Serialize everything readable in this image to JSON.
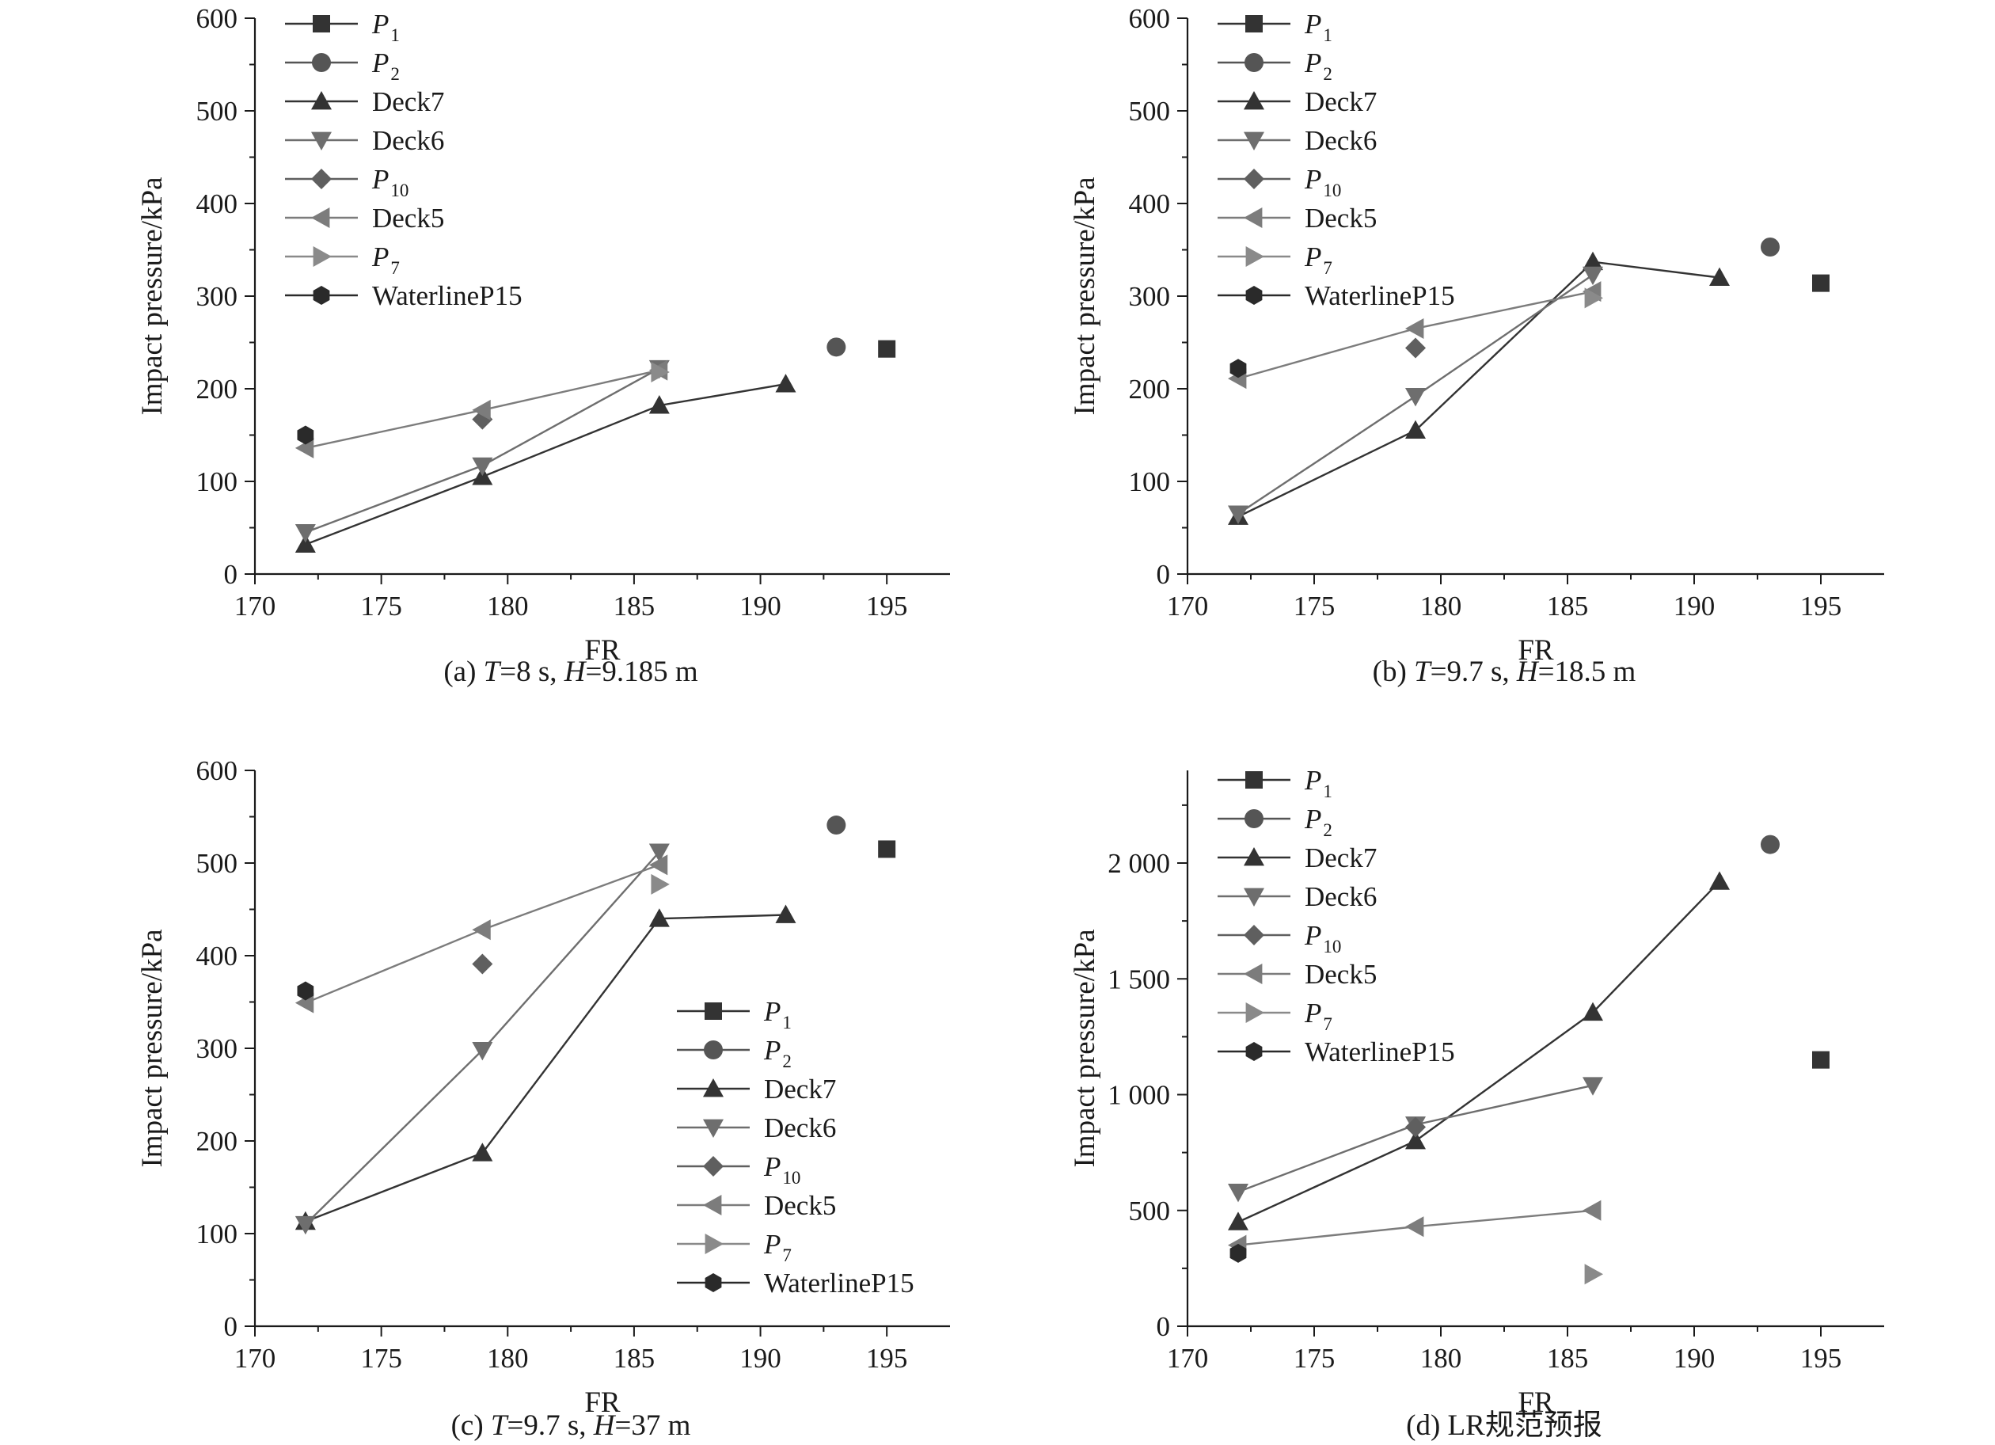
{
  "chart_data": [
    {
      "type": "line",
      "caption": "(a) T=8 s, H=9.185 m",
      "caption_parts": [
        "(a) ",
        "T",
        "=8 s, ",
        "H",
        "=9.185 m"
      ],
      "xlabel": "FR",
      "ylabel": "Impact pressure/kPa",
      "xlim": [
        170,
        197.5
      ],
      "ylim": [
        0,
        600
      ],
      "xticks": [
        170,
        175,
        180,
        185,
        190,
        195
      ],
      "xtick_labels": [
        "170",
        "175",
        "180",
        "185",
        "190",
        "195"
      ],
      "yticks": [
        0,
        100,
        200,
        300,
        400,
        500,
        600
      ],
      "ytick_labels": [
        "0",
        "100",
        "200",
        "300",
        "400",
        "500",
        "600"
      ],
      "legend_position": "top-left",
      "series": [
        {
          "name": "P1",
          "marker": "square",
          "line": false,
          "points": [
            [
              195,
              243
            ]
          ]
        },
        {
          "name": "P2",
          "marker": "circle",
          "line": false,
          "points": [
            [
              193,
              245
            ]
          ]
        },
        {
          "name": "Deck7",
          "marker": "triangle-up",
          "line": true,
          "points": [
            [
              172,
              32
            ],
            [
              179,
              105
            ],
            [
              186,
              182
            ],
            [
              191,
              205
            ]
          ]
        },
        {
          "name": "Deck6",
          "marker": "triangle-down",
          "line": true,
          "points": [
            [
              172,
              45
            ],
            [
              179,
              117
            ],
            [
              186,
              222
            ]
          ]
        },
        {
          "name": "P10",
          "marker": "diamond",
          "line": false,
          "points": [
            [
              179,
              167
            ]
          ]
        },
        {
          "name": "Deck5",
          "marker": "triangle-left",
          "line": true,
          "points": [
            [
              172,
              136
            ],
            [
              179,
              177
            ],
            [
              186,
              220
            ]
          ]
        },
        {
          "name": "P7",
          "marker": "triangle-right",
          "line": false,
          "points": [
            [
              186,
              218
            ]
          ]
        },
        {
          "name": "WaterlineP15",
          "marker": "hexagon",
          "line": false,
          "points": [
            [
              172,
              150
            ]
          ]
        }
      ]
    },
    {
      "type": "line",
      "caption": "(b) T=9.7 s, H=18.5 m",
      "caption_parts": [
        "(b) ",
        "T",
        "=9.7 s, ",
        "H",
        "=18.5 m"
      ],
      "xlabel": "FR",
      "ylabel": "Impact pressure/kPa",
      "xlim": [
        170,
        197.5
      ],
      "ylim": [
        0,
        600
      ],
      "xticks": [
        170,
        175,
        180,
        185,
        190,
        195
      ],
      "xtick_labels": [
        "170",
        "175",
        "180",
        "185",
        "190",
        "195"
      ],
      "yticks": [
        0,
        100,
        200,
        300,
        400,
        500,
        600
      ],
      "ytick_labels": [
        "0",
        "100",
        "200",
        "300",
        "400",
        "500",
        "600"
      ],
      "legend_position": "top-left",
      "series": [
        {
          "name": "P1",
          "marker": "square",
          "line": false,
          "points": [
            [
              195,
              314
            ]
          ]
        },
        {
          "name": "P2",
          "marker": "circle",
          "line": false,
          "points": [
            [
              193,
              353
            ]
          ]
        },
        {
          "name": "Deck7",
          "marker": "triangle-up",
          "line": true,
          "points": [
            [
              172,
              62
            ],
            [
              179,
              155
            ],
            [
              186,
              337
            ],
            [
              191,
              320
            ]
          ]
        },
        {
          "name": "Deck6",
          "marker": "triangle-down",
          "line": true,
          "points": [
            [
              172,
              65
            ],
            [
              179,
              192
            ],
            [
              186,
              323
            ]
          ]
        },
        {
          "name": "P10",
          "marker": "diamond",
          "line": false,
          "points": [
            [
              179,
              244
            ]
          ]
        },
        {
          "name": "Deck5",
          "marker": "triangle-left",
          "line": true,
          "points": [
            [
              172,
              211
            ],
            [
              179,
              265
            ],
            [
              186,
              305
            ]
          ]
        },
        {
          "name": "P7",
          "marker": "triangle-right",
          "line": false,
          "points": [
            [
              186,
              298
            ]
          ]
        },
        {
          "name": "WaterlineP15",
          "marker": "hexagon",
          "line": false,
          "points": [
            [
              172,
              222
            ]
          ]
        }
      ]
    },
    {
      "type": "line",
      "caption": "(c) T=9.7 s, H=37 m",
      "caption_parts": [
        "(c) ",
        "T",
        "=9.7 s, ",
        "H",
        "=37 m"
      ],
      "xlabel": "FR",
      "ylabel": "Impact pressure/kPa",
      "xlim": [
        170,
        197.5
      ],
      "ylim": [
        0,
        600
      ],
      "xticks": [
        170,
        175,
        180,
        185,
        190,
        195
      ],
      "xtick_labels": [
        "170",
        "175",
        "180",
        "185",
        "190",
        "195"
      ],
      "yticks": [
        0,
        100,
        200,
        300,
        400,
        500,
        600
      ],
      "ytick_labels": [
        "0",
        "100",
        "200",
        "300",
        "400",
        "500",
        "600"
      ],
      "legend_position": "lower-right",
      "series": [
        {
          "name": "P1",
          "marker": "square",
          "line": false,
          "points": [
            [
              195,
              515
            ]
          ]
        },
        {
          "name": "P2",
          "marker": "circle",
          "line": false,
          "points": [
            [
              193,
              541
            ]
          ]
        },
        {
          "name": "Deck7",
          "marker": "triangle-up",
          "line": true,
          "points": [
            [
              172,
              113
            ],
            [
              179,
              187
            ],
            [
              186,
              440
            ],
            [
              191,
              444
            ]
          ]
        },
        {
          "name": "Deck6",
          "marker": "triangle-down",
          "line": true,
          "points": [
            [
              172,
              110
            ],
            [
              179,
              298
            ],
            [
              186,
              512
            ]
          ]
        },
        {
          "name": "P10",
          "marker": "diamond",
          "line": false,
          "points": [
            [
              179,
              391
            ]
          ]
        },
        {
          "name": "Deck5",
          "marker": "triangle-left",
          "line": true,
          "points": [
            [
              172,
              349
            ],
            [
              179,
              428
            ],
            [
              186,
              498
            ]
          ]
        },
        {
          "name": "P7",
          "marker": "triangle-right",
          "line": false,
          "points": [
            [
              186,
              477
            ]
          ]
        },
        {
          "name": "WaterlineP15",
          "marker": "hexagon",
          "line": false,
          "points": [
            [
              172,
              362
            ]
          ]
        }
      ]
    },
    {
      "type": "line",
      "caption": "(d) LR规范预报",
      "caption_parts": [
        "(d) LR规范预报"
      ],
      "xlabel": "FR",
      "ylabel": "Impact pressure/kPa",
      "xlim": [
        170,
        197.5
      ],
      "ylim": [
        0,
        2400
      ],
      "xticks": [
        170,
        175,
        180,
        185,
        190,
        195
      ],
      "xtick_labels": [
        "170",
        "175",
        "180",
        "185",
        "190",
        "195"
      ],
      "yticks": [
        0,
        500,
        1000,
        1500,
        2000
      ],
      "ytick_labels": [
        "0",
        "500",
        "1 000",
        "1 500",
        "2 000"
      ],
      "legend_position": "top-left",
      "series": [
        {
          "name": "P1",
          "marker": "square",
          "line": false,
          "points": [
            [
              195,
              1150
            ]
          ]
        },
        {
          "name": "P2",
          "marker": "circle",
          "line": false,
          "points": [
            [
              193,
              2080
            ]
          ]
        },
        {
          "name": "Deck7",
          "marker": "triangle-up",
          "line": true,
          "points": [
            [
              172,
              450
            ],
            [
              179,
              800
            ],
            [
              186,
              1355
            ],
            [
              191,
              1920
            ]
          ]
        },
        {
          "name": "Deck6",
          "marker": "triangle-down",
          "line": true,
          "points": [
            [
              172,
              580
            ],
            [
              179,
              870
            ],
            [
              186,
              1040
            ]
          ]
        },
        {
          "name": "P10",
          "marker": "diamond",
          "line": false,
          "points": [
            [
              179,
              860
            ]
          ]
        },
        {
          "name": "Deck5",
          "marker": "triangle-left",
          "line": true,
          "points": [
            [
              172,
              350
            ],
            [
              179,
              430
            ],
            [
              186,
              500
            ]
          ]
        },
        {
          "name": "P7",
          "marker": "triangle-right",
          "line": false,
          "points": [
            [
              186,
              225
            ]
          ]
        },
        {
          "name": "WaterlineP15",
          "marker": "hexagon",
          "line": false,
          "points": [
            [
              172,
              315
            ]
          ]
        }
      ]
    }
  ],
  "legend": {
    "entries": [
      {
        "key": "P1",
        "main": "P",
        "sub": "1",
        "italic": true
      },
      {
        "key": "P2",
        "main": "P",
        "sub": "2",
        "italic": true
      },
      {
        "key": "Deck7",
        "main": "Deck7",
        "sub": "",
        "italic": false
      },
      {
        "key": "Deck6",
        "main": "Deck6",
        "sub": "",
        "italic": false
      },
      {
        "key": "P10",
        "main": "P",
        "sub": "10",
        "italic": true
      },
      {
        "key": "Deck5",
        "main": "Deck5",
        "sub": "",
        "italic": false
      },
      {
        "key": "P7",
        "main": "P",
        "sub": "7",
        "italic": true
      },
      {
        "key": "WaterlineP15",
        "main": "WaterlineP15",
        "sub": "",
        "italic": false
      }
    ]
  },
  "colors": {
    "P1": "#333333",
    "P2": "#555555",
    "Deck7": "#333333",
    "Deck6": "#6e6e6e",
    "P10": "#5f5f5f",
    "Deck5": "#7c7c7c",
    "P7": "#8a8a8a",
    "WaterlineP15": "#2a2a2a",
    "axis": "#1a1a1a"
  }
}
